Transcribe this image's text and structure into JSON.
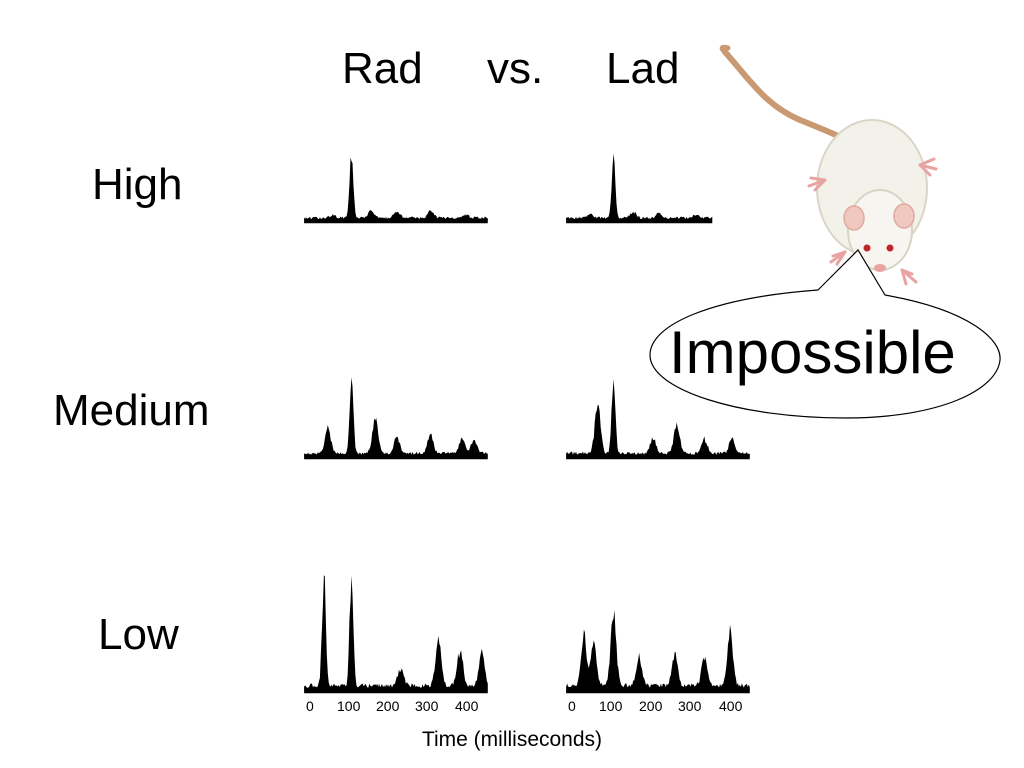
{
  "title": {
    "left_word": "Rad",
    "middle_word": "vs.",
    "right_word": "Lad"
  },
  "row_labels": [
    "High",
    "Medium",
    "Low"
  ],
  "callout": {
    "text": "Impossible",
    "image": "white-rat-illustration"
  },
  "chart_data": {
    "type": "area",
    "xlabel": "Time (milliseconds)",
    "x_ticks": [
      "0",
      "100",
      "200",
      "300",
      "400"
    ],
    "x_range": [
      0,
      450
    ],
    "columns": [
      "Rad",
      "Lad"
    ],
    "rows": [
      "High",
      "Medium",
      "Low"
    ],
    "y_range": [
      0,
      1
    ],
    "baseline_noise": 0.05,
    "panels": [
      {
        "column": "Rad",
        "row": "High",
        "x_extent": [
          -20,
          445
        ],
        "peaks": [
          [
            100,
            1.0
          ],
          [
            52,
            0.04
          ],
          [
            150,
            0.12
          ],
          [
            215,
            0.1
          ],
          [
            300,
            0.12
          ],
          [
            390,
            0.05
          ]
        ]
      },
      {
        "column": "Lad",
        "row": "High",
        "x_extent": [
          -20,
          350
        ],
        "peaks": [
          [
            100,
            0.95
          ],
          [
            40,
            0.06
          ],
          [
            150,
            0.09
          ],
          [
            215,
            0.08
          ],
          [
            310,
            0.05
          ]
        ]
      },
      {
        "column": "Rad",
        "row": "Medium",
        "x_extent": [
          -20,
          445
        ],
        "peaks": [
          [
            40,
            0.35
          ],
          [
            100,
            1.0
          ],
          [
            160,
            0.45
          ],
          [
            215,
            0.22
          ],
          [
            300,
            0.25
          ],
          [
            380,
            0.2
          ],
          [
            410,
            0.18
          ]
        ]
      },
      {
        "column": "Lad",
        "row": "Medium",
        "x_extent": [
          -20,
          445
        ],
        "peaks": [
          [
            60,
            0.65
          ],
          [
            100,
            1.0
          ],
          [
            200,
            0.2
          ],
          [
            260,
            0.38
          ],
          [
            330,
            0.18
          ],
          [
            400,
            0.2
          ]
        ]
      },
      {
        "column": "Rad",
        "row": "Low",
        "x_extent": [
          -20,
          445
        ],
        "peaks": [
          [
            30,
            1.0
          ],
          [
            100,
            1.0
          ],
          [
            225,
            0.17
          ],
          [
            320,
            0.42
          ],
          [
            375,
            0.32
          ],
          [
            430,
            0.3
          ]
        ]
      },
      {
        "column": "Lad",
        "row": "Low",
        "x_extent": [
          -20,
          445
        ],
        "peaks": [
          [
            25,
            0.45
          ],
          [
            50,
            0.4
          ],
          [
            100,
            0.65
          ],
          [
            165,
            0.27
          ],
          [
            255,
            0.3
          ],
          [
            330,
            0.27
          ],
          [
            395,
            0.48
          ]
        ]
      }
    ]
  }
}
